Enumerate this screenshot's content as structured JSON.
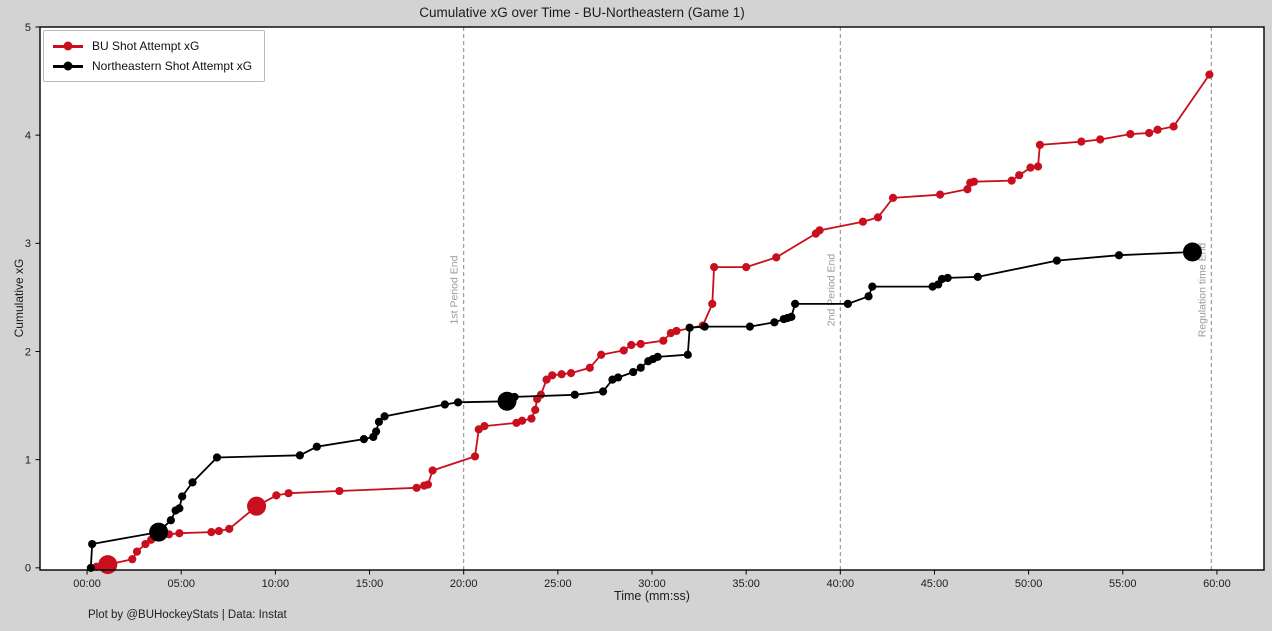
{
  "footer_credit": "Plot by @BUHockeyStats | Data: Instat",
  "chart_data": {
    "type": "line",
    "title": "Cumulative xG over Time - BU-Northeastern (Game 1)",
    "xlabel": "Time (mm:ss)",
    "ylabel": "Cumulative xG",
    "xlim": [
      -2.5,
      62.5
    ],
    "ylim": [
      0,
      5
    ],
    "grid": false,
    "legend_position": "upper-left",
    "background_color": "#d3d3d3",
    "plot_background": "#ffffff",
    "x_ticks": [
      {
        "t": 0,
        "label": "00:00"
      },
      {
        "t": 5,
        "label": "05:00"
      },
      {
        "t": 10,
        "label": "10:00"
      },
      {
        "t": 15,
        "label": "15:00"
      },
      {
        "t": 20,
        "label": "20:00"
      },
      {
        "t": 25,
        "label": "25:00"
      },
      {
        "t": 30,
        "label": "30:00"
      },
      {
        "t": 35,
        "label": "35:00"
      },
      {
        "t": 40,
        "label": "40:00"
      },
      {
        "t": 45,
        "label": "45:00"
      },
      {
        "t": 50,
        "label": "50:00"
      },
      {
        "t": 55,
        "label": "55:00"
      },
      {
        "t": 60,
        "label": "60:00"
      }
    ],
    "y_ticks": [
      {
        "v": 0,
        "label": "0"
      },
      {
        "v": 1,
        "label": "1"
      },
      {
        "v": 2,
        "label": "2"
      },
      {
        "v": 3,
        "label": "3"
      },
      {
        "v": 4,
        "label": "4"
      },
      {
        "v": 5,
        "label": "5"
      }
    ],
    "vlines": [
      {
        "t": 20,
        "label": "1st Period End"
      },
      {
        "t": 40,
        "label": "2nd Period End"
      },
      {
        "t": 59.7,
        "label": "Regulation time End"
      }
    ],
    "vline_color": "#888888",
    "vline_label_color": "#9a9a9a",
    "series": [
      {
        "name": "BU Shot Attempt xG",
        "color": "#c90e1e",
        "points": [
          [
            0.5,
            0.01
          ],
          [
            1.1,
            0.03
          ],
          [
            2.4,
            0.08
          ],
          [
            2.65,
            0.15
          ],
          [
            3.1,
            0.22
          ],
          [
            3.4,
            0.26
          ],
          [
            3.7,
            0.29
          ],
          [
            4.35,
            0.31
          ],
          [
            4.9,
            0.32
          ],
          [
            6.6,
            0.33
          ],
          [
            7.0,
            0.34
          ],
          [
            7.55,
            0.36
          ],
          [
            9.0,
            0.57
          ],
          [
            10.05,
            0.67
          ],
          [
            10.7,
            0.69
          ],
          [
            13.4,
            0.71
          ],
          [
            17.5,
            0.74
          ],
          [
            17.9,
            0.76
          ],
          [
            18.1,
            0.77
          ],
          [
            18.35,
            0.9
          ],
          [
            20.6,
            1.03
          ],
          [
            20.8,
            1.28
          ],
          [
            21.1,
            1.31
          ],
          [
            22.8,
            1.34
          ],
          [
            23.1,
            1.36
          ],
          [
            23.6,
            1.38
          ],
          [
            23.8,
            1.46
          ],
          [
            23.9,
            1.56
          ],
          [
            24.1,
            1.6
          ],
          [
            24.4,
            1.74
          ],
          [
            24.7,
            1.78
          ],
          [
            25.2,
            1.79
          ],
          [
            25.7,
            1.8
          ],
          [
            26.7,
            1.85
          ],
          [
            27.3,
            1.97
          ],
          [
            28.5,
            2.01
          ],
          [
            28.9,
            2.06
          ],
          [
            29.4,
            2.07
          ],
          [
            30.6,
            2.1
          ],
          [
            31.0,
            2.17
          ],
          [
            31.3,
            2.19
          ],
          [
            32.7,
            2.24
          ],
          [
            33.2,
            2.44
          ],
          [
            33.3,
            2.78
          ],
          [
            35.0,
            2.78
          ],
          [
            36.6,
            2.87
          ],
          [
            38.7,
            3.09
          ],
          [
            38.9,
            3.12
          ],
          [
            41.2,
            3.2
          ],
          [
            42.0,
            3.24
          ],
          [
            42.8,
            3.42
          ],
          [
            45.3,
            3.45
          ],
          [
            46.75,
            3.5
          ],
          [
            46.9,
            3.56
          ],
          [
            47.1,
            3.57
          ],
          [
            49.1,
            3.58
          ],
          [
            49.5,
            3.63
          ],
          [
            50.1,
            3.7
          ],
          [
            50.5,
            3.71
          ],
          [
            50.6,
            3.91
          ],
          [
            52.8,
            3.94
          ],
          [
            53.8,
            3.96
          ],
          [
            55.4,
            4.01
          ],
          [
            56.4,
            4.02
          ],
          [
            56.85,
            4.05
          ],
          [
            57.7,
            4.08
          ],
          [
            59.6,
            4.56
          ]
        ],
        "goals": [
          [
            1.1,
            0.03
          ],
          [
            9.0,
            0.57
          ]
        ]
      },
      {
        "name": "Northeastern Shot Attempt xG",
        "color": "#000000",
        "points": [
          [
            0.2,
            0.0
          ],
          [
            0.27,
            0.22
          ],
          [
            3.8,
            0.33
          ],
          [
            4.45,
            0.44
          ],
          [
            4.7,
            0.53
          ],
          [
            4.9,
            0.55
          ],
          [
            5.05,
            0.66
          ],
          [
            5.6,
            0.79
          ],
          [
            6.9,
            1.02
          ],
          [
            11.3,
            1.04
          ],
          [
            12.2,
            1.12
          ],
          [
            14.7,
            1.19
          ],
          [
            15.2,
            1.21
          ],
          [
            15.35,
            1.26
          ],
          [
            15.5,
            1.35
          ],
          [
            15.8,
            1.4
          ],
          [
            19.0,
            1.51
          ],
          [
            19.7,
            1.53
          ],
          [
            22.3,
            1.54
          ],
          [
            22.7,
            1.58
          ],
          [
            25.9,
            1.6
          ],
          [
            27.4,
            1.63
          ],
          [
            27.9,
            1.74
          ],
          [
            28.2,
            1.76
          ],
          [
            29.0,
            1.81
          ],
          [
            29.4,
            1.85
          ],
          [
            29.8,
            1.91
          ],
          [
            30.05,
            1.93
          ],
          [
            30.3,
            1.95
          ],
          [
            31.9,
            1.97
          ],
          [
            32.0,
            2.22
          ],
          [
            32.8,
            2.23
          ],
          [
            35.2,
            2.23
          ],
          [
            36.5,
            2.27
          ],
          [
            37.0,
            2.3
          ],
          [
            37.2,
            2.31
          ],
          [
            37.4,
            2.32
          ],
          [
            37.6,
            2.44
          ],
          [
            40.4,
            2.44
          ],
          [
            41.5,
            2.51
          ],
          [
            41.7,
            2.6
          ],
          [
            44.9,
            2.6
          ],
          [
            45.2,
            2.62
          ],
          [
            45.4,
            2.67
          ],
          [
            45.7,
            2.68
          ],
          [
            47.3,
            2.69
          ],
          [
            51.5,
            2.84
          ],
          [
            54.8,
            2.89
          ],
          [
            58.7,
            2.92
          ]
        ],
        "goals": [
          [
            3.8,
            0.33
          ],
          [
            22.3,
            1.54
          ],
          [
            58.7,
            2.92
          ]
        ]
      }
    ]
  }
}
